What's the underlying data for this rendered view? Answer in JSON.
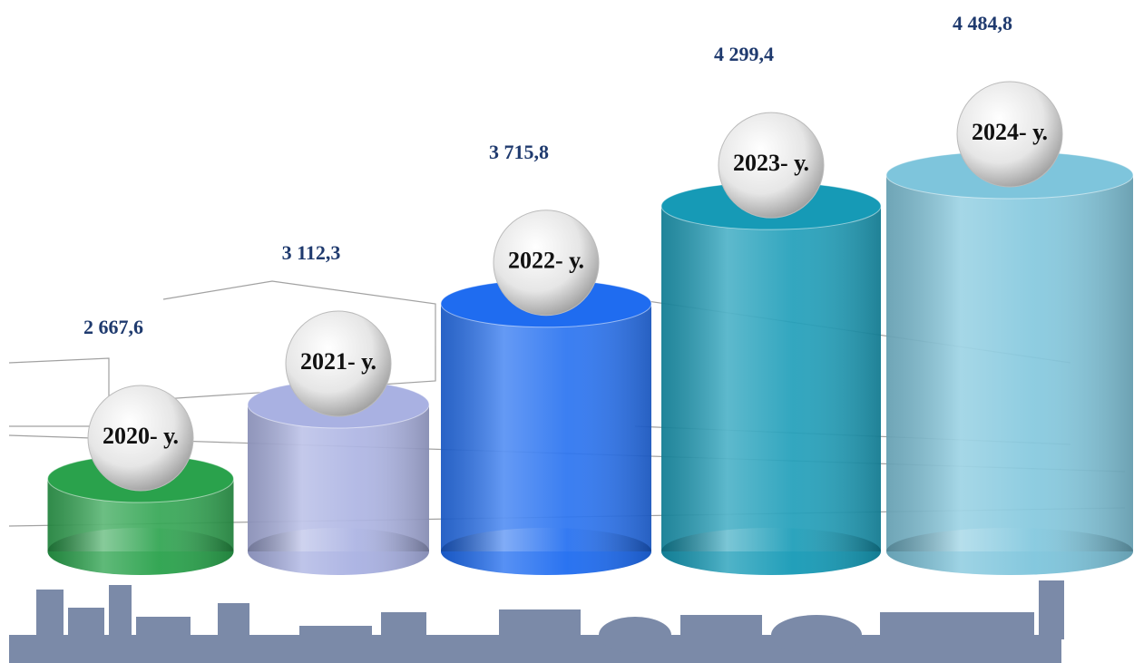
{
  "chart_data": {
    "type": "bar",
    "categories": [
      "2020- у.",
      "2021- у.",
      "2022- у.",
      "2023- у.",
      "2024- у."
    ],
    "values": [
      2667.6,
      3112.3,
      3715.8,
      4299.4,
      4484.8
    ],
    "value_labels": [
      "2 667,6",
      "3 112,3",
      "3 715,8",
      "4 299,4",
      "4 484,8"
    ],
    "colors": [
      "#2aa24c",
      "#a9b1e2",
      "#1f6cf0",
      "#169ab6",
      "#7ec5dc"
    ]
  }
}
